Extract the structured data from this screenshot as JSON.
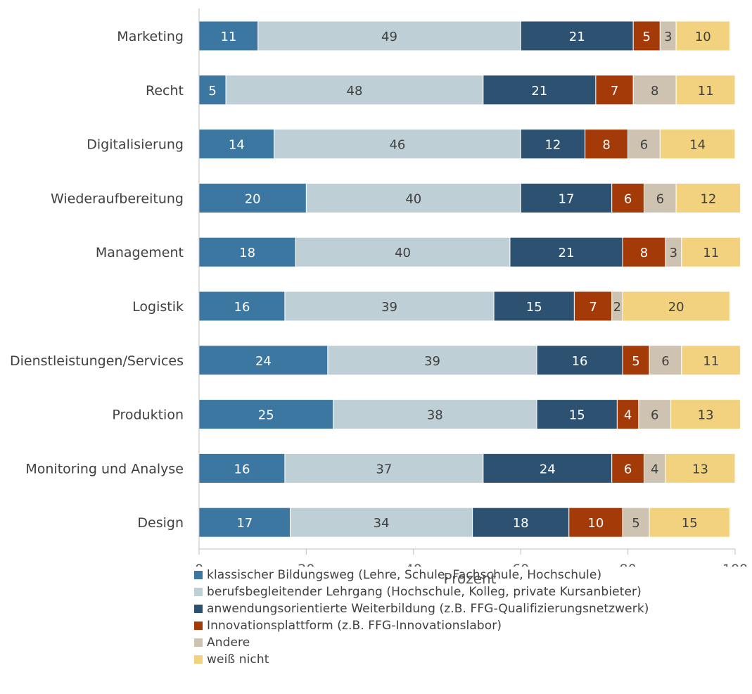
{
  "chart_data": {
    "type": "bar",
    "orientation": "horizontal",
    "stacked": true,
    "categories": [
      "Marketing",
      "Recht",
      "Digitalisierung",
      "Wiederaufbereitung",
      "Management",
      "Logistik",
      "Dienstleistungen/Services",
      "Produktion",
      "Monitoring und Analyse",
      "Design"
    ],
    "series": [
      {
        "name": "klassischer Bildungsweg (Lehre, Schule, Fachschule, Hochschule)",
        "color": "#3b77a0",
        "label_color": "#ffffff",
        "values": [
          11,
          5,
          14,
          20,
          18,
          16,
          24,
          25,
          16,
          17
        ]
      },
      {
        "name": "berufsbegleitender Lehrgang (Hochschule, Kolleg, private Kursanbieter)",
        "color": "#bfcfd6",
        "label_color": "#404040",
        "values": [
          49,
          48,
          46,
          40,
          40,
          39,
          39,
          38,
          37,
          34
        ]
      },
      {
        "name": "anwendungsorientierte Weiterbildung (z.B. FFG-Qualifizierungsnetzwerk)",
        "color": "#2d5271",
        "label_color": "#ffffff",
        "values": [
          21,
          21,
          12,
          17,
          21,
          15,
          16,
          15,
          24,
          18
        ]
      },
      {
        "name": "Innovationsplattform (z.B. FFG-Innovationslabor)",
        "color": "#a33a07",
        "label_color": "#ffffff",
        "values": [
          5,
          7,
          8,
          6,
          8,
          7,
          5,
          4,
          6,
          10
        ]
      },
      {
        "name": "Andere",
        "color": "#cdc3b0",
        "label_color": "#404040",
        "values": [
          3,
          8,
          6,
          6,
          3,
          2,
          6,
          6,
          4,
          5
        ]
      },
      {
        "name": "weiß nicht",
        "color": "#f2d27e",
        "label_color": "#404040",
        "values": [
          10,
          11,
          14,
          12,
          11,
          20,
          11,
          13,
          13,
          15
        ]
      }
    ],
    "xlabel": "Prozent",
    "ylabel": "",
    "xlim": [
      0,
      100
    ],
    "xticks": [
      0,
      20,
      40,
      60,
      80,
      100
    ],
    "grid": false,
    "legend_position": "bottom-left"
  }
}
